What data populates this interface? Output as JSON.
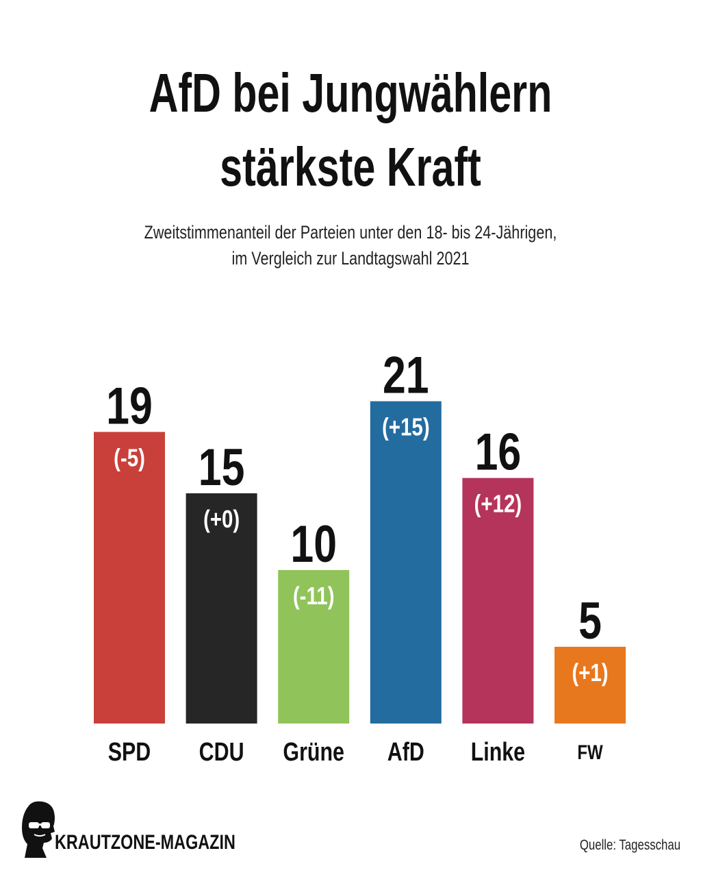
{
  "header": {
    "title_line1": "AfD bei Jungwählern",
    "title_line2": "stärkste Kraft",
    "subtitle_line1": "Zweitstimmenanteil der Parteien unter den 18- bis 24-Jährigen,",
    "subtitle_line2": "im Vergleich zur Landtagswahl 2021"
  },
  "chart_data": {
    "type": "bar",
    "title": "AfD bei Jungwählern stärkste Kraft",
    "subtitle": "Zweitstimmenanteil der Parteien unter den 18- bis 24-Jährigen, im Vergleich zur Landtagswahl 2021",
    "xlabel": "",
    "ylabel": "",
    "ylim": [
      0,
      25
    ],
    "grid": false,
    "categories": [
      "SPD",
      "CDU",
      "Grüne",
      "AfD",
      "Linke",
      "FW"
    ],
    "values": [
      19,
      15,
      10,
      21,
      16,
      5
    ],
    "changes": [
      "(-5)",
      "(+0)",
      "(-11)",
      "(+15)",
      "(+12)",
      "(+1)"
    ],
    "colors": [
      "#c9403a",
      "#262626",
      "#90c45a",
      "#236c9f",
      "#b5345c",
      "#e8781e"
    ]
  },
  "footer": {
    "brand": "KRAUTZONE-MAGAZIN",
    "source": "Quelle: Tagesschau"
  }
}
